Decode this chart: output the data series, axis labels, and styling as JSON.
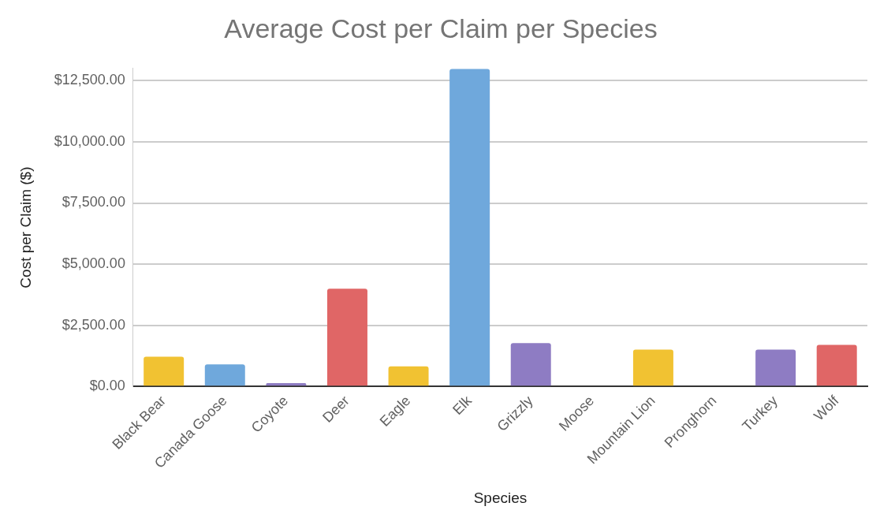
{
  "chart_data": {
    "type": "bar",
    "title": "Average Cost per Claim per Species",
    "xlabel": "Species",
    "ylabel": "Cost per Claim ($)",
    "categories": [
      "Black Bear",
      "Canada Goose",
      "Coyote",
      "Deer",
      "Eagle",
      "Elk",
      "Grizzly",
      "Moose",
      "Mountain Lion",
      "Pronghorn",
      "Turkey",
      "Wolf"
    ],
    "values": [
      1220,
      900,
      140,
      4000,
      820,
      12980,
      1770,
      0,
      1510,
      0,
      1510,
      1700
    ],
    "colors": [
      "#f1c232",
      "#6fa8dc",
      "#8e7cc3",
      "#e06666",
      "#f1c232",
      "#6fa8dc",
      "#8e7cc3",
      "#6fa8dc",
      "#f1c232",
      "#e06666",
      "#8e7cc3",
      "#e06666"
    ],
    "yticks": [
      {
        "value": 0,
        "label": "$0.00"
      },
      {
        "value": 2500,
        "label": "$2,500.00"
      },
      {
        "value": 5000,
        "label": "$5,000.00"
      },
      {
        "value": 7500,
        "label": "$7,500.00"
      },
      {
        "value": 10000,
        "label": "$10,000.00"
      },
      {
        "value": 12500,
        "label": "$12,500.00"
      }
    ],
    "ylim": [
      0,
      13000
    ],
    "grid": "y",
    "legend": false
  }
}
